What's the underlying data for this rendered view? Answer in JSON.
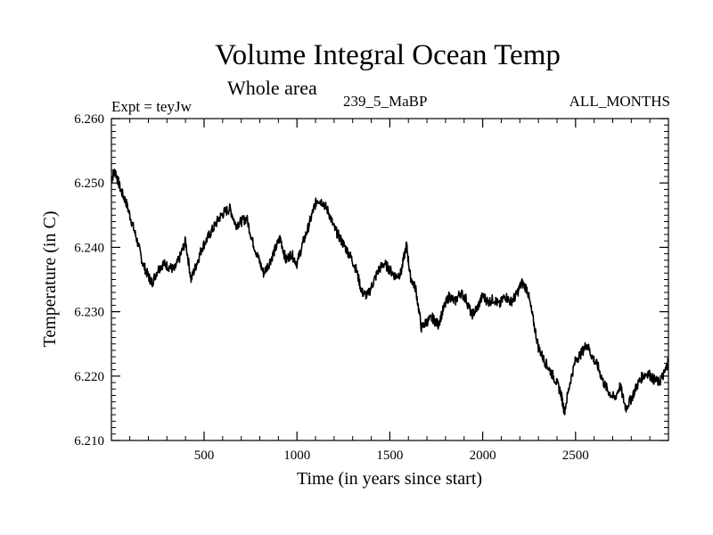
{
  "header": {
    "title": "Volume Integral Ocean Temp",
    "subtitle": "Whole area",
    "experiment": "Expt = teyJw",
    "period": "239_5_MaBP",
    "months": "ALL_MONTHS"
  },
  "chart_data": {
    "type": "line",
    "title": "Volume Integral Ocean Temp",
    "subtitle": "Whole area",
    "xlabel": "Time (in years since start)",
    "ylabel": "Temperature (in C)",
    "xlim": [
      1,
      3000
    ],
    "ylim": [
      6.21,
      6.26
    ],
    "xticks": [
      500,
      1000,
      1500,
      2000,
      2500
    ],
    "yticks": [
      "6.210",
      "6.220",
      "6.230",
      "6.240",
      "6.250",
      "6.260"
    ],
    "grid": false,
    "series": [
      {
        "name": "Volume Integral Ocean Temp",
        "x": [
          1,
          20,
          50,
          80,
          110,
          140,
          170,
          200,
          220,
          250,
          280,
          310,
          340,
          370,
          400,
          430,
          460,
          490,
          520,
          550,
          580,
          610,
          640,
          670,
          700,
          730,
          760,
          790,
          820,
          850,
          880,
          910,
          940,
          970,
          1000,
          1030,
          1060,
          1090,
          1110,
          1140,
          1170,
          1200,
          1230,
          1260,
          1290,
          1320,
          1350,
          1380,
          1410,
          1440,
          1470,
          1500,
          1530,
          1560,
          1590,
          1610,
          1640,
          1670,
          1700,
          1730,
          1760,
          1790,
          1820,
          1850,
          1880,
          1910,
          1940,
          1970,
          2000,
          2030,
          2060,
          2090,
          2120,
          2150,
          2180,
          2210,
          2240,
          2270,
          2300,
          2330,
          2360,
          2390,
          2420,
          2440,
          2470,
          2500,
          2530,
          2560,
          2590,
          2620,
          2650,
          2680,
          2710,
          2740,
          2770,
          2800,
          2830,
          2860,
          2890,
          2920,
          2950,
          2980,
          3000
        ],
        "values": [
          6.2505,
          6.252,
          6.249,
          6.247,
          6.244,
          6.241,
          6.2375,
          6.2355,
          6.2345,
          6.2365,
          6.2375,
          6.237,
          6.2365,
          6.2385,
          6.241,
          6.235,
          6.2375,
          6.24,
          6.2415,
          6.243,
          6.2445,
          6.2455,
          6.246,
          6.2435,
          6.244,
          6.2445,
          6.241,
          6.2385,
          6.236,
          6.2375,
          6.2395,
          6.2415,
          6.238,
          6.239,
          6.2375,
          6.2405,
          6.243,
          6.246,
          6.2475,
          6.247,
          6.2455,
          6.243,
          6.2415,
          6.24,
          6.2385,
          6.2365,
          6.233,
          6.2325,
          6.2345,
          6.2365,
          6.2375,
          6.2365,
          6.2355,
          6.236,
          6.2405,
          6.2355,
          6.2335,
          6.2275,
          6.2285,
          6.229,
          6.228,
          6.2305,
          6.2325,
          6.2315,
          6.233,
          6.232,
          6.2295,
          6.2305,
          6.2325,
          6.2315,
          6.232,
          6.231,
          6.2325,
          6.2315,
          6.2325,
          6.2345,
          6.2335,
          6.229,
          6.2245,
          6.2225,
          6.221,
          6.2195,
          6.2175,
          6.2145,
          6.219,
          6.2225,
          6.2235,
          6.225,
          6.223,
          6.2215,
          6.219,
          6.2175,
          6.2165,
          6.2185,
          6.215,
          6.2165,
          6.2185,
          6.22,
          6.2205,
          6.2195,
          6.219,
          6.2205,
          6.2225
        ]
      }
    ]
  }
}
